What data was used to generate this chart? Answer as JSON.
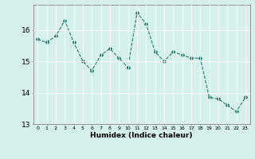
{
  "x": [
    0,
    1,
    2,
    3,
    4,
    5,
    6,
    7,
    8,
    9,
    10,
    11,
    12,
    13,
    14,
    15,
    16,
    17,
    18,
    19,
    20,
    21,
    22,
    23
  ],
  "y": [
    15.7,
    15.6,
    15.8,
    16.3,
    15.6,
    15.0,
    14.7,
    15.2,
    15.4,
    15.1,
    14.8,
    16.55,
    16.2,
    15.3,
    15.0,
    15.3,
    15.2,
    15.1,
    15.1,
    13.85,
    13.8,
    13.6,
    13.4,
    13.85
  ],
  "xlim": [
    -0.5,
    23.5
  ],
  "ylim": [
    13.0,
    16.8
  ],
  "yticks": [
    13,
    14,
    15,
    16
  ],
  "xticks": [
    0,
    1,
    2,
    3,
    4,
    5,
    6,
    7,
    8,
    9,
    10,
    11,
    12,
    13,
    14,
    15,
    16,
    17,
    18,
    19,
    20,
    21,
    22,
    23
  ],
  "xlabel": "Humidex (Indice chaleur)",
  "line_color": "#2d7a6e",
  "marker": "D",
  "marker_size": 2,
  "bg_color": "#d6f0ee",
  "grid_color": "#ffffff",
  "xlabel_fontsize": 6.5,
  "xlabel_fontweight": "bold",
  "xtick_fontsize": 4.5,
  "ytick_fontsize": 6.5
}
